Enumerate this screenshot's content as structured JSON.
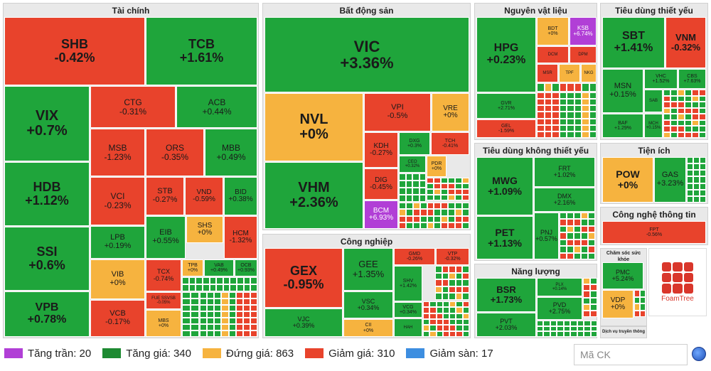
{
  "sectors": [
    {
      "id": "taichinh",
      "title": "Tài chính"
    },
    {
      "id": "bds",
      "title": "Bất động sản"
    },
    {
      "id": "nvl",
      "title": "Nguyên vật liệu"
    },
    {
      "id": "tdty",
      "title": "Tiêu dùng thiết yếu"
    },
    {
      "id": "tienich",
      "title": "Tiện ích"
    },
    {
      "id": "tdkty",
      "title": "Tiêu dùng không thiết yếu"
    },
    {
      "id": "congnghiep",
      "title": "Công nghiệp"
    },
    {
      "id": "nangluong",
      "title": "Năng lượng"
    },
    {
      "id": "cntt",
      "title": "Công nghệ thông tin"
    },
    {
      "id": "csskhoe",
      "title": "Chăm sóc sức khỏe"
    },
    {
      "id": "dvtt",
      "title": "Dịch vụ truyền thông"
    }
  ],
  "stocks": [
    {
      "symbol": "SHB",
      "change": "-0.42%",
      "status": "down"
    },
    {
      "symbol": "TCB",
      "change": "+1.61%",
      "status": "up"
    },
    {
      "symbol": "VIX",
      "change": "+0.7%",
      "status": "up"
    },
    {
      "symbol": "CTG",
      "change": "-0.31%",
      "status": "down"
    },
    {
      "symbol": "ACB",
      "change": "+0.44%",
      "status": "up"
    },
    {
      "symbol": "MSB",
      "change": "-1.23%",
      "status": "down"
    },
    {
      "symbol": "ORS",
      "change": "-0.35%",
      "status": "down"
    },
    {
      "symbol": "MBB",
      "change": "+0.49%",
      "status": "up"
    },
    {
      "symbol": "HDB",
      "change": "+1.12%",
      "status": "up"
    },
    {
      "symbol": "VCI",
      "change": "-0.23%",
      "status": "down"
    },
    {
      "symbol": "STB",
      "change": "-0.27%",
      "status": "down"
    },
    {
      "symbol": "VND",
      "change": "-0.59%",
      "status": "down"
    },
    {
      "symbol": "BID",
      "change": "+0.38%",
      "status": "up"
    },
    {
      "symbol": "SSI",
      "change": "+0.6%",
      "status": "up"
    },
    {
      "symbol": "LPB",
      "change": "+0.19%",
      "status": "up"
    },
    {
      "symbol": "EIB",
      "change": "+0.55%",
      "status": "up"
    },
    {
      "symbol": "SHS",
      "change": "+0%",
      "status": "ref"
    },
    {
      "symbol": "HCM",
      "change": "-1.32%",
      "status": "down"
    },
    {
      "symbol": "VIB",
      "change": "+0%",
      "status": "ref"
    },
    {
      "symbol": "TCX",
      "change": "-0.74%",
      "status": "down"
    },
    {
      "symbol": "TPB",
      "change": "+0%",
      "status": "ref"
    },
    {
      "symbol": "VAB",
      "change": "+0.49%",
      "status": "up"
    },
    {
      "symbol": "OCB",
      "change": "+0.93%",
      "status": "up"
    },
    {
      "symbol": "VPB",
      "change": "+0.78%",
      "status": "up"
    },
    {
      "symbol": "VCB",
      "change": "-0.17%",
      "status": "down"
    },
    {
      "symbol": "FUE SSVSB",
      "change": "-0.05%",
      "status": "down"
    },
    {
      "symbol": "MBS",
      "change": "+0%",
      "status": "ref"
    },
    {
      "symbol": "VIC",
      "change": "+3.36%",
      "status": "up"
    },
    {
      "symbol": "NVL",
      "change": "+0%",
      "status": "ref"
    },
    {
      "symbol": "VPI",
      "change": "-0.5%",
      "status": "down"
    },
    {
      "symbol": "VRE",
      "change": "+0%",
      "status": "ref"
    },
    {
      "symbol": "KDH",
      "change": "-0.27%",
      "status": "down"
    },
    {
      "symbol": "DXG",
      "change": "+0.3%",
      "status": "up"
    },
    {
      "symbol": "TCH",
      "change": "-0.41%",
      "status": "down"
    },
    {
      "symbol": "CEO",
      "change": "+0.32%",
      "status": "up"
    },
    {
      "symbol": "PDR",
      "change": "+0%",
      "status": "ref"
    },
    {
      "symbol": "VHM",
      "change": "+2.36%",
      "status": "up"
    },
    {
      "symbol": "DIG",
      "change": "-0.45%",
      "status": "down"
    },
    {
      "symbol": "BCM",
      "change": "+6.93%",
      "status": "ceil"
    },
    {
      "symbol": "HPG",
      "change": "+0.23%",
      "status": "up"
    },
    {
      "symbol": "BDT",
      "change": "+0%",
      "status": "ref"
    },
    {
      "symbol": "KSB",
      "change": "+6.74%",
      "status": "ceil"
    },
    {
      "symbol": "DCM",
      "change": "",
      "status": "down"
    },
    {
      "symbol": "DPM",
      "change": "",
      "status": "down"
    },
    {
      "symbol": "MSR",
      "change": "",
      "status": "down"
    },
    {
      "symbol": "TPF",
      "change": "",
      "status": "ref"
    },
    {
      "symbol": "NKG",
      "change": "",
      "status": "ref"
    },
    {
      "symbol": "GVR",
      "change": "+2.71%",
      "status": "up"
    },
    {
      "symbol": "GEL",
      "change": "-1.59%",
      "status": "down"
    },
    {
      "symbol": "SBT",
      "change": "+1.41%",
      "status": "up"
    },
    {
      "symbol": "VNM",
      "change": "-0.32%",
      "status": "down"
    },
    {
      "symbol": "MSN",
      "change": "+0.15%",
      "status": "up"
    },
    {
      "symbol": "VHC",
      "change": "+1.52%",
      "status": "up"
    },
    {
      "symbol": "CBS",
      "change": "+7.63%",
      "status": "up"
    },
    {
      "symbol": "SAB",
      "change": "",
      "status": "up"
    },
    {
      "symbol": "BAF",
      "change": "+1.29%",
      "status": "up"
    },
    {
      "symbol": "MCH",
      "change": "+0.15%",
      "status": "up"
    },
    {
      "symbol": "POW",
      "change": "+0%",
      "status": "ref"
    },
    {
      "symbol": "GAS",
      "change": "+3.23%",
      "status": "up"
    },
    {
      "symbol": "MWG",
      "change": "+1.09%",
      "status": "up"
    },
    {
      "symbol": "FRT",
      "change": "+1.02%",
      "status": "up"
    },
    {
      "symbol": "DMX",
      "change": "+2.16%",
      "status": "up"
    },
    {
      "symbol": "PET",
      "change": "+1.13%",
      "status": "up"
    },
    {
      "symbol": "PNJ",
      "change": "+0.57%",
      "status": "up"
    },
    {
      "symbol": "GEX",
      "change": "-0.95%",
      "status": "down"
    },
    {
      "symbol": "GEE",
      "change": "+1.35%",
      "status": "up"
    },
    {
      "symbol": "GMD",
      "change": "-0.26%",
      "status": "down"
    },
    {
      "symbol": "VTP",
      "change": "-0.32%",
      "status": "down"
    },
    {
      "symbol": "SHV",
      "change": "+1.42%",
      "status": "up"
    },
    {
      "symbol": "VSC",
      "change": "+0.34%",
      "status": "up"
    },
    {
      "symbol": "VCG",
      "change": "+0.34%",
      "status": "up"
    },
    {
      "symbol": "VJC",
      "change": "+0.39%",
      "status": "up"
    },
    {
      "symbol": "CII",
      "change": "+0%",
      "status": "ref"
    },
    {
      "symbol": "HAH",
      "change": "",
      "status": "up"
    },
    {
      "symbol": "BSR",
      "change": "+1.73%",
      "status": "up"
    },
    {
      "symbol": "PLX",
      "change": "+0.14%",
      "status": "up"
    },
    {
      "symbol": "PVD",
      "change": "+2.75%",
      "status": "up"
    },
    {
      "symbol": "PVT",
      "change": "+2.03%",
      "status": "up"
    },
    {
      "symbol": "FPT",
      "change": "-0.56%",
      "status": "down"
    },
    {
      "symbol": "PMC",
      "change": "+5.24%",
      "status": "up"
    },
    {
      "symbol": "VDP",
      "change": "+0%",
      "status": "ref"
    }
  ],
  "logo": {
    "text": "FoamTree"
  },
  "legend": [
    {
      "label": "Tăng trần: 20",
      "color": "#b13fd6"
    },
    {
      "label": "Tăng giá: 340",
      "color": "#1e8a32"
    },
    {
      "label": "Đứng giá: 863",
      "color": "#f6b33f"
    },
    {
      "label": "Giảm giá: 310",
      "color": "#e8432c"
    },
    {
      "label": "Giảm sàn: 17",
      "color": "#3d8ee0"
    }
  ],
  "search": {
    "placeholder": "Mã CK"
  },
  "colors": {
    "up": "#1fa53b",
    "down": "#e8432c",
    "ref": "#f6b33f",
    "ceil": "#b13fd6",
    "floor": "#3d8ee0"
  }
}
